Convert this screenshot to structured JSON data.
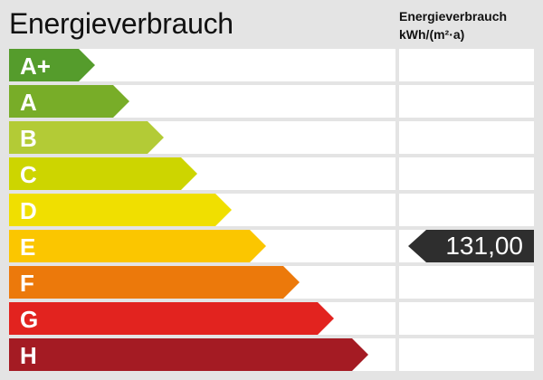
{
  "title": "Energieverbrauch",
  "column_header": {
    "line1": "Energieverbrauch",
    "line2": "kWh/(m²·a)"
  },
  "classes": [
    {
      "label": "A+",
      "color": "#559c2c"
    },
    {
      "label": "A",
      "color": "#78ad28"
    },
    {
      "label": "B",
      "color": "#b3cb36"
    },
    {
      "label": "C",
      "color": "#cdd500"
    },
    {
      "label": "D",
      "color": "#f0df00"
    },
    {
      "label": "E",
      "color": "#fbc600"
    },
    {
      "label": "F",
      "color": "#ec790b"
    },
    {
      "label": "G",
      "color": "#e2231f"
    },
    {
      "label": "H",
      "color": "#a41b23"
    }
  ],
  "indicator": {
    "value": "131,00",
    "class": "E",
    "color": "#2e2e2e"
  }
}
